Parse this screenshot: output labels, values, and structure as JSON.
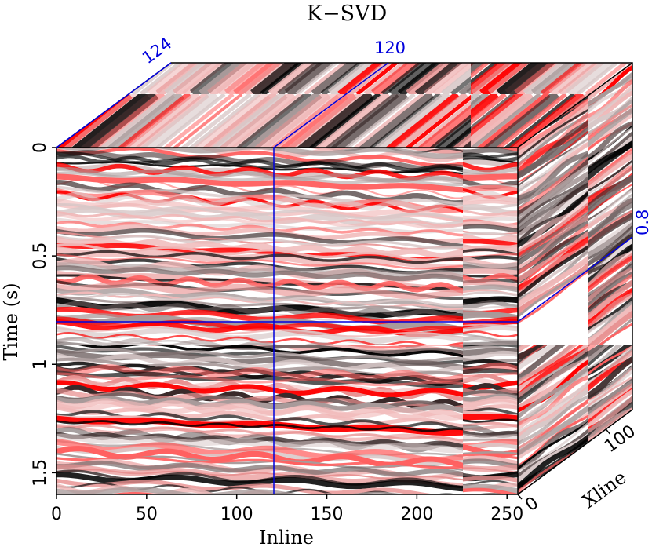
{
  "figure": {
    "title": "K−SVD",
    "inline_axis": {
      "label": "Inline",
      "ticks": [
        "0",
        "50",
        "100",
        "150",
        "200",
        "250"
      ],
      "tick_values": [
        0,
        50,
        100,
        150,
        200,
        250
      ],
      "range": [
        0,
        256
      ]
    },
    "time_axis": {
      "label": "Time (s)",
      "ticks": [
        "0",
        "0.5",
        "1",
        "1.5"
      ],
      "tick_values": [
        0,
        0.5,
        1,
        1.5
      ],
      "range": [
        0,
        1.6
      ]
    },
    "xline_axis": {
      "label": "Xline",
      "ticks": [
        "0",
        "100"
      ],
      "tick_values": [
        0,
        100
      ],
      "range": [
        0,
        130
      ]
    },
    "slices": {
      "xline": "124",
      "inline": "120",
      "time": "0.8",
      "inline_value": 120,
      "time_value": 0.8,
      "xline_value": 124
    },
    "colors": {
      "line": "#0000dd",
      "positive": "#ff0000",
      "negative": "#000000",
      "background": "#ffffff"
    }
  }
}
